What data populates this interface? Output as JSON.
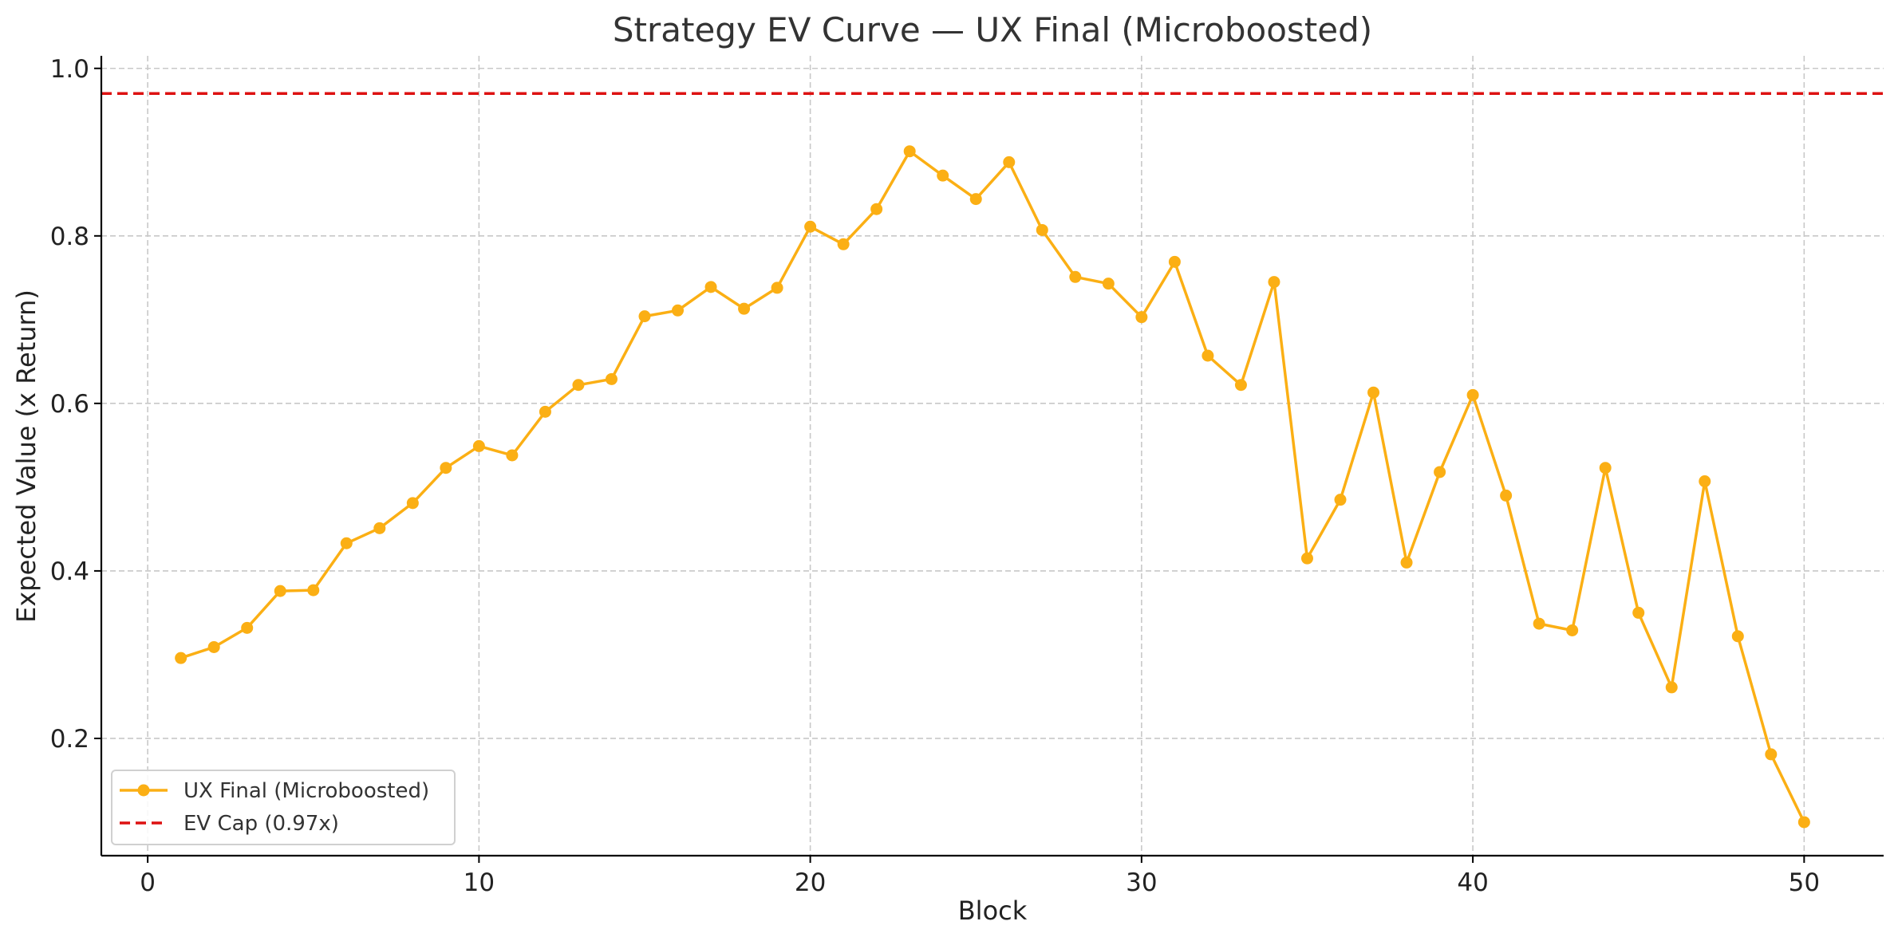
{
  "chart_data": {
    "type": "line",
    "title": "Strategy EV Curve — UX Final (Microboosted)",
    "xlabel": "Block",
    "ylabel": "Expected Value (x Return)",
    "xlim": [
      -1.4,
      52.4
    ],
    "ylim": [
      0.06,
      1.015
    ],
    "xticks": [
      0,
      10,
      20,
      30,
      40,
      50
    ],
    "xtick_labels": [
      "0",
      "10",
      "20",
      "30",
      "40",
      "50"
    ],
    "yticks": [
      0.2,
      0.4,
      0.6,
      0.8,
      1.0
    ],
    "ytick_labels": [
      "0.2",
      "0.4",
      "0.6",
      "0.8",
      "1.0"
    ],
    "grid": true,
    "legend_position": "lower-left",
    "series": [
      {
        "name": "UX Final (Microboosted)",
        "color": "#FBAF14",
        "marker": "circle",
        "x": [
          1,
          2,
          3,
          4,
          5,
          6,
          7,
          8,
          9,
          10,
          11,
          12,
          13,
          14,
          15,
          16,
          17,
          18,
          19,
          20,
          21,
          22,
          23,
          24,
          25,
          26,
          27,
          28,
          29,
          30,
          31,
          32,
          33,
          34,
          35,
          36,
          37,
          38,
          39,
          40,
          41,
          42,
          43,
          44,
          45,
          46,
          47,
          48,
          49,
          50
        ],
        "y": [
          0.296,
          0.309,
          0.332,
          0.376,
          0.377,
          0.433,
          0.451,
          0.481,
          0.523,
          0.549,
          0.538,
          0.59,
          0.622,
          0.629,
          0.704,
          0.711,
          0.739,
          0.713,
          0.738,
          0.811,
          0.79,
          0.832,
          0.901,
          0.872,
          0.844,
          0.888,
          0.807,
          0.751,
          0.743,
          0.703,
          0.769,
          0.657,
          0.622,
          0.745,
          0.415,
          0.485,
          0.613,
          0.41,
          0.518,
          0.61,
          0.49,
          0.337,
          0.329,
          0.523,
          0.35,
          0.261,
          0.507,
          0.322,
          0.181,
          0.1
        ]
      }
    ],
    "reference_lines": [
      {
        "name": "EV Cap (0.97x)",
        "y": 0.97,
        "color": "#DD1111",
        "style": "dashed"
      }
    ]
  }
}
